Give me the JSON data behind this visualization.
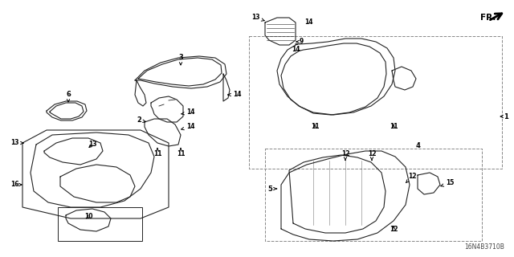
{
  "bg_color": "#ffffff",
  "diagram_code": "16N4B3710B",
  "fr_label": "FR.",
  "line_color": "#222222",
  "dashed_color": "#888888",
  "lw": 0.8,
  "label_fs": 6.0,
  "figsize": [
    6.4,
    3.2
  ],
  "dpi": 100
}
